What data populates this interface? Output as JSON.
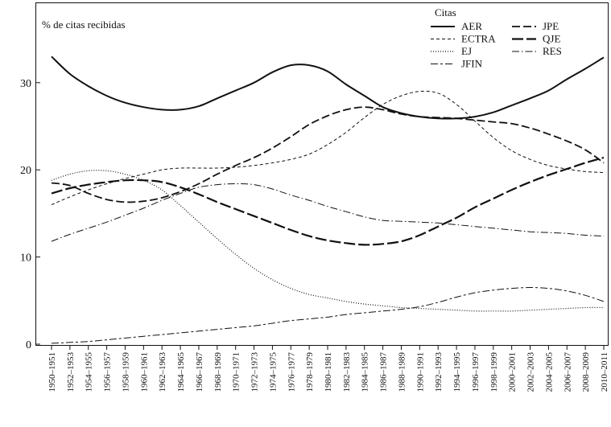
{
  "chart_data": {
    "type": "line",
    "title": "",
    "ylabel": "% de citas recibidas",
    "xlabel": "",
    "ylim": [
      -2,
      35
    ],
    "yticks": [
      0,
      10,
      20,
      30
    ],
    "grid": false,
    "legend": {
      "title": "Citas",
      "position": "top-right",
      "columns": 2
    },
    "categories": [
      "1950–1951",
      "1952–1953",
      "1954–1955",
      "1956–1957",
      "1958–1959",
      "1960–1961",
      "1962–1963",
      "1964–1965",
      "1966–1967",
      "1968–1969",
      "1970–1971",
      "1972–1973",
      "1974–1975",
      "1976–1977",
      "1978–1979",
      "1980–1981",
      "1982–1983",
      "1984–1985",
      "1986–1987",
      "1988–1989",
      "1990–1991",
      "1992–1993",
      "1994–1995",
      "1996–1997",
      "1998–1999",
      "2000–2001",
      "2002–2003",
      "2004–2005",
      "2006–2007",
      "2008–2009",
      "2010–2011"
    ],
    "series": [
      {
        "name": "AER",
        "style": "solid",
        "color": "#111111",
        "values": [
          33.0,
          31.0,
          29.6,
          28.5,
          27.7,
          27.2,
          26.9,
          26.9,
          27.3,
          28.2,
          29.1,
          30.0,
          31.2,
          32.0,
          32.0,
          31.3,
          29.8,
          28.5,
          27.2,
          26.5,
          26.1,
          25.9,
          25.9,
          26.1,
          26.6,
          27.4,
          28.2,
          29.1,
          30.4,
          31.6,
          32.9
        ]
      },
      {
        "name": "ECTRA",
        "style": "dashed-short",
        "color": "#111111",
        "values": [
          16.0,
          16.9,
          17.7,
          18.4,
          19.0,
          19.5,
          20.0,
          20.2,
          20.2,
          20.2,
          20.3,
          20.5,
          20.8,
          21.2,
          21.8,
          22.9,
          24.3,
          26.0,
          27.5,
          28.5,
          29.0,
          28.8,
          27.5,
          25.6,
          23.7,
          22.2,
          21.2,
          20.5,
          20.1,
          19.8,
          19.7
        ]
      },
      {
        "name": "EJ",
        "style": "dotted",
        "color": "#111111",
        "values": [
          18.8,
          19.5,
          19.9,
          19.9,
          19.5,
          18.8,
          17.7,
          15.9,
          14.0,
          12.1,
          10.3,
          8.7,
          7.4,
          6.4,
          5.7,
          5.3,
          4.9,
          4.6,
          4.4,
          4.2,
          4.1,
          4.0,
          3.9,
          3.8,
          3.8,
          3.8,
          3.9,
          4.0,
          4.1,
          4.2,
          4.2
        ]
      },
      {
        "name": "JFIN",
        "style": "dash-long-short",
        "color": "#111111",
        "values": [
          0.1,
          0.2,
          0.3,
          0.5,
          0.7,
          0.9,
          1.1,
          1.3,
          1.5,
          1.7,
          1.9,
          2.1,
          2.4,
          2.7,
          2.9,
          3.1,
          3.4,
          3.6,
          3.8,
          4.0,
          4.3,
          4.8,
          5.4,
          5.9,
          6.2,
          6.4,
          6.5,
          6.4,
          6.1,
          5.6,
          4.9
        ]
      },
      {
        "name": "JPE",
        "style": "dashed",
        "color": "#111111",
        "values": [
          18.5,
          18.2,
          17.3,
          16.6,
          16.3,
          16.4,
          16.8,
          17.5,
          18.4,
          19.5,
          20.5,
          21.4,
          22.5,
          23.8,
          25.2,
          26.2,
          26.9,
          27.2,
          26.9,
          26.4,
          26.1,
          26.0,
          25.9,
          25.7,
          25.5,
          25.3,
          24.8,
          24.1,
          23.3,
          22.3,
          20.8
        ]
      },
      {
        "name": "QJE",
        "style": "dashed-long",
        "color": "#111111",
        "values": [
          17.3,
          17.9,
          18.3,
          18.6,
          18.8,
          18.8,
          18.6,
          18.0,
          17.2,
          16.3,
          15.5,
          14.7,
          13.9,
          13.1,
          12.4,
          11.9,
          11.6,
          11.4,
          11.5,
          11.8,
          12.5,
          13.5,
          14.5,
          15.7,
          16.7,
          17.7,
          18.6,
          19.4,
          20.1,
          20.8,
          21.4
        ]
      },
      {
        "name": "RES",
        "style": "dash-dot",
        "color": "#111111",
        "values": [
          11.8,
          12.6,
          13.3,
          14.0,
          14.8,
          15.6,
          16.5,
          17.3,
          18.0,
          18.3,
          18.4,
          18.3,
          17.8,
          17.1,
          16.5,
          15.8,
          15.2,
          14.6,
          14.2,
          14.1,
          14.0,
          13.9,
          13.7,
          13.5,
          13.3,
          13.1,
          12.9,
          12.8,
          12.7,
          12.5,
          12.4
        ]
      }
    ]
  }
}
